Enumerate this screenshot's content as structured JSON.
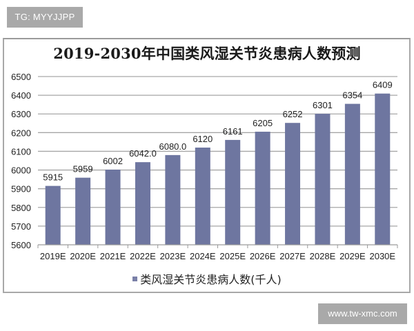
{
  "watermarks": {
    "top_left": "TG: MYYJJPP",
    "bottom_right": "www.tw-xmc.com"
  },
  "chart_data": {
    "type": "bar",
    "title": "2019-2030年中国类风湿关节炎患病人数预测",
    "categories": [
      "2019E",
      "2020E",
      "2021E",
      "2022E",
      "2023E",
      "2024E",
      "2025E",
      "2026E",
      "2027E",
      "2028E",
      "2029E",
      "2030E"
    ],
    "series": [
      {
        "name": "类风湿关节炎患病人数(千人)",
        "values": [
          5915,
          5959,
          6002,
          6042,
          6080,
          6120,
          6161,
          6205,
          6252,
          6301,
          6354,
          6409
        ],
        "labels": [
          "5915",
          "5959",
          "6002",
          "6042.0",
          "6080.0",
          "6120",
          "6161",
          "6205",
          "6252",
          "6301",
          "6354",
          "6409"
        ],
        "color": "#6e76a0"
      }
    ],
    "xlabel": "",
    "ylabel": "",
    "ylim": [
      5600,
      6500
    ],
    "yticks": [
      5600,
      5700,
      5800,
      5900,
      6000,
      6100,
      6200,
      6300,
      6400,
      6500
    ],
    "grid": true,
    "legend_position": "bottom"
  },
  "legend": {
    "label": "类风湿关节炎患病人数(千人)"
  }
}
